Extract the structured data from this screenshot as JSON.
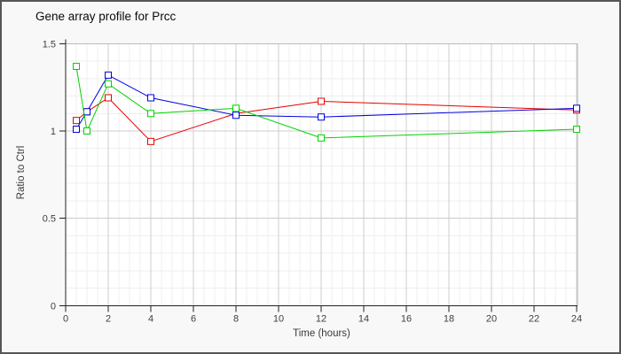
{
  "window": {
    "title": "Gene array profile for Prcc"
  },
  "colors": {
    "page_background": "#f8f8f8",
    "plot_background": "#ffffff",
    "outer_border": "#565656",
    "plot_frame": "#bbbbbb",
    "axis": "#222222",
    "grid_major": "#cccccc",
    "grid_minor": "#efefef",
    "tick_text": "#404040",
    "series_red": "#e60000",
    "series_blue": "#0000e0",
    "series_green": "#00d300"
  },
  "chart_data": {
    "type": "line",
    "title": "Gene array profile for Prcc",
    "xlabel": "Time (hours)",
    "ylabel": "Ratio to Ctrl",
    "xlim": [
      0,
      24
    ],
    "ylim": [
      0,
      1.5
    ],
    "xticks": [
      0,
      2,
      4,
      6,
      8,
      10,
      12,
      14,
      16,
      18,
      20,
      22,
      24
    ],
    "yticks": [
      0,
      0.5,
      1,
      1.5
    ],
    "ytick_labels": [
      "0",
      "0.5",
      "1",
      "1.5"
    ],
    "grid": "major and minor gridlines on, no legend",
    "minor_x_step": 0.5,
    "minor_y_step": 0.1,
    "legend_position": "none",
    "marker": "open-square",
    "x": [
      0.5,
      1,
      2,
      4,
      8,
      12,
      24
    ],
    "series": [
      {
        "name": "red",
        "color": "#e60000",
        "values": [
          1.06,
          1.11,
          1.19,
          0.94,
          1.1,
          1.17,
          1.12
        ]
      },
      {
        "name": "blue",
        "color": "#0000e0",
        "values": [
          1.01,
          1.11,
          1.32,
          1.19,
          1.09,
          1.08,
          1.13
        ]
      },
      {
        "name": "green",
        "color": "#00d300",
        "values": [
          1.37,
          1.0,
          1.27,
          1.1,
          1.13,
          0.96,
          1.01
        ]
      }
    ]
  }
}
